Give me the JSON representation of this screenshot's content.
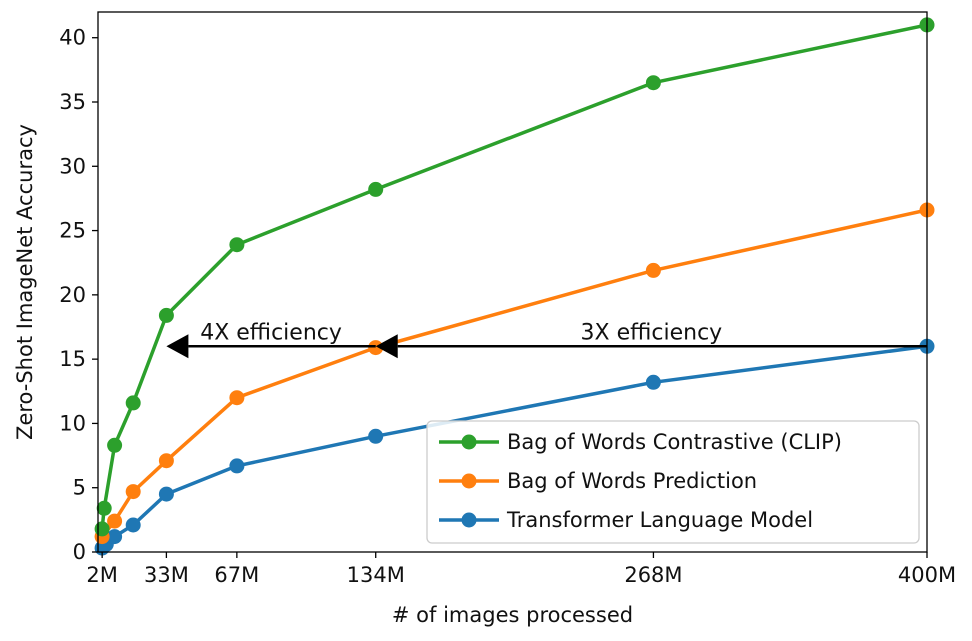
{
  "chart_data": {
    "type": "line",
    "title": "",
    "xlabel": "# of images processed",
    "ylabel": "Zero-Shot ImageNet Accuracy",
    "xlim": [
      0,
      400
    ],
    "ylim": [
      0,
      42
    ],
    "x_ticks": [
      {
        "value": 2,
        "label": "2M"
      },
      {
        "value": 33,
        "label": "33M"
      },
      {
        "value": 67,
        "label": "67M"
      },
      {
        "value": 134,
        "label": "134M"
      },
      {
        "value": 268,
        "label": "268M"
      },
      {
        "value": 400,
        "label": "400M"
      }
    ],
    "y_ticks": [
      0,
      5,
      10,
      15,
      20,
      25,
      30,
      35,
      40
    ],
    "grid": false,
    "legend_position": "lower-right",
    "series": [
      {
        "name": "Bag of Words Contrastive (CLIP)",
        "color": "#2ca02c",
        "x": [
          2,
          3,
          8,
          17,
          33,
          67,
          134,
          268,
          400
        ],
        "y": [
          1.8,
          3.4,
          8.3,
          11.6,
          18.4,
          23.9,
          28.2,
          36.5,
          41.0
        ]
      },
      {
        "name": "Bag of Words Prediction",
        "color": "#ff7f0e",
        "x": [
          2,
          8,
          17,
          33,
          67,
          134,
          268,
          400
        ],
        "y": [
          1.2,
          2.4,
          4.7,
          7.1,
          12.0,
          15.9,
          21.9,
          26.6
        ]
      },
      {
        "name": "Transformer Language Model",
        "color": "#1f77b4",
        "x": [
          2,
          4,
          8,
          17,
          33,
          67,
          134,
          268,
          400
        ],
        "y": [
          0.3,
          0.6,
          1.2,
          2.1,
          4.5,
          6.7,
          9.0,
          13.2,
          16.0
        ]
      }
    ],
    "annotations": [
      {
        "text": "4X efficiency",
        "from_x": 134,
        "to_x": 33,
        "y": 16.0
      },
      {
        "text": "3X efficiency",
        "from_x": 400,
        "to_x": 134,
        "y": 16.0
      }
    ]
  }
}
